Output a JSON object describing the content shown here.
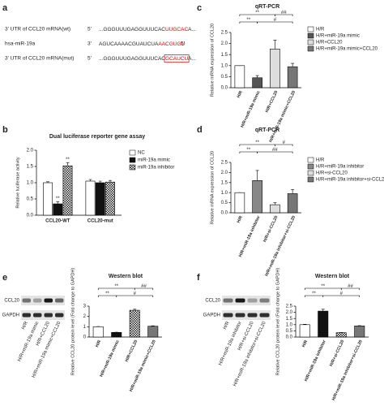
{
  "panel_labels": [
    "a",
    "b",
    "c",
    "d",
    "e",
    "f"
  ],
  "sequences": [
    {
      "label": "3' UTR of CCL20  mRNA(wt)",
      "prefix": "5'",
      "seq": "...GGGUUUGAGGUUUCAC",
      "highlight": "UUGCAC",
      "suffix": "A...",
      "boxed": false
    },
    {
      "label": "hsa-miR-19a",
      "prefix": "3'",
      "seq": "AGUCAAAACGUAUCUA",
      "highlight": "AACGUGU",
      "suffix": "",
      "boxed": false
    },
    {
      "label": "3' UTR of CCL20  mRNA(mut)",
      "prefix": "5'",
      "seq": "...GGGUUUGAGGUUUCAC",
      "highlight": "GCAUCU",
      "suffix": "A...",
      "boxed": true
    }
  ],
  "blots": [
    {
      "rows": [
        "CCL20",
        "GAPDH"
      ],
      "lanes": [
        "H/R",
        "H/R+miR-19a mimic",
        "H/R+CCL20",
        "H/R+miR-19a mimic+CCL20"
      ]
    },
    {
      "rows": [
        "CCL20",
        "GAPDH"
      ],
      "lanes": [
        "H/R",
        "H/R+miR-19a inhibitor",
        "H/R+si-CCL20",
        "H/R+miR-19a inhibitor+si-CCL20"
      ]
    }
  ],
  "chart_data": [
    {
      "type": "bar",
      "title": "Dual luciferase reporter gene assay",
      "y_label": "Relative luciferase activity",
      "categories": [
        "CCL20-WT",
        "CCL20-mut"
      ],
      "series": [
        {
          "name": "NC",
          "color": "#ffffff",
          "values": [
            1.0,
            1.05
          ],
          "errors": [
            0.03,
            0.05
          ]
        },
        {
          "name": "miR-19a mimic",
          "color": "#111111",
          "values": [
            0.35,
            1.0
          ],
          "errors": [
            0.07,
            0.05
          ]
        },
        {
          "name": "miR-19a inhibitor",
          "color": "checkered",
          "values": [
            1.52,
            1.02
          ],
          "errors": [
            0.1,
            0.05
          ]
        }
      ],
      "annotations": [
        "**",
        "**"
      ],
      "ylim": [
        0,
        2.0
      ],
      "yticks": [
        {
          "value": 0,
          "label": "0.0"
        },
        {
          "value": 0.5,
          "label": "0.5"
        },
        {
          "value": 1,
          "label": "1.0"
        },
        {
          "value": 1.5,
          "label": "1.5"
        },
        {
          "value": 2,
          "label": "2.0"
        }
      ],
      "legend": true
    },
    {
      "type": "bar",
      "title": "qRT-PCR",
      "y_label": "Relative mRNA expression of CCL20",
      "categories": [
        "H/R",
        "H/R+miR-19a mimic",
        "H/R+CCL20",
        "H/R+miR-19a mimic+CCL20"
      ],
      "values": [
        1.0,
        0.45,
        1.75,
        0.95
      ],
      "errors": [
        0,
        0.1,
        0.4,
        0.15
      ],
      "colors": [
        "#ffffff",
        "#555555",
        "#dddddd",
        "#777777"
      ],
      "annotations": [
        "**",
        "##",
        "**",
        "#"
      ],
      "ylim": [
        0,
        2.5
      ],
      "yticks": [
        {
          "value": 0,
          "label": "0.0"
        },
        {
          "value": 0.5,
          "label": "0.5"
        },
        {
          "value": 1,
          "label": "1.0"
        },
        {
          "value": 1.5,
          "label": "1.5"
        },
        {
          "value": 2,
          "label": "2.0"
        },
        {
          "value": 2.5,
          "label": "2.5"
        }
      ],
      "legend": true
    },
    {
      "type": "bar",
      "title": "qRT-PCR",
      "y_label": "Relative mRNA expression of CCL20",
      "categories": [
        "H/R",
        "H/R+miR-19a inhibitor",
        "H/R+si-CCL20",
        "H/R+miR-19a inhibitor+si-CCL20"
      ],
      "values": [
        1.0,
        1.6,
        0.4,
        0.95
      ],
      "errors": [
        0,
        0.5,
        0.1,
        0.2
      ],
      "colors": [
        "#ffffff",
        "#888888",
        "#dddddd",
        "#777777"
      ],
      "annotations": [
        "**",
        "#",
        "**",
        "##"
      ],
      "ylim": [
        0,
        2.5
      ],
      "yticks": [
        {
          "value": 0,
          "label": "0.0"
        },
        {
          "value": 0.5,
          "label": "0.5"
        },
        {
          "value": 1,
          "label": "1.0"
        },
        {
          "value": 1.5,
          "label": "1.5"
        },
        {
          "value": 2,
          "label": "2.0"
        },
        {
          "value": 2.5,
          "label": "2.5"
        }
      ],
      "legend": true
    },
    {
      "type": "bar",
      "title": "Western blot",
      "y_label": "Relative CCL20 protein level (Fold change to GAPDH)",
      "categories": [
        "H/R",
        "H/R+miR-19a mimic",
        "H/R+CCL20",
        "H/R+miR-19a mimic+CCL20"
      ],
      "values": [
        1.0,
        0.45,
        2.6,
        1.05
      ],
      "errors": [
        0.02,
        0.02,
        0.1,
        0.04
      ],
      "colors": [
        "#ffffff",
        "#111111",
        "checkered",
        "#777777"
      ],
      "annotations": [
        "**",
        "##",
        "**",
        "#"
      ],
      "ylim": [
        0,
        3
      ],
      "yticks": [
        0,
        1,
        2,
        3
      ],
      "legend": false
    },
    {
      "type": "bar",
      "title": "Western blot",
      "y_label": "Relative CCL20 protein level (Fold change to GAPDH)",
      "categories": [
        "H/R",
        "H/R+miR-19a inhibitor",
        "H/R+si-CCL20",
        "H/R+miR-19a inhibitor+si-CCL20"
      ],
      "values": [
        1.0,
        2.1,
        0.35,
        0.9
      ],
      "errors": [
        0.03,
        0.15,
        0.02,
        0.03
      ],
      "colors": [
        "#ffffff",
        "#111111",
        "checkered",
        "#777777"
      ],
      "annotations": [
        "**",
        "##",
        "**",
        "#"
      ],
      "ylim": [
        0,
        2.5
      ],
      "yticks": [
        {
          "value": 0,
          "label": "0.0"
        },
        {
          "value": 0.5,
          "label": "0.5"
        },
        {
          "value": 1,
          "label": "1.0"
        },
        {
          "value": 1.5,
          "label": "1.5"
        },
        {
          "value": 2,
          "label": "2.0"
        },
        {
          "value": 2.5,
          "label": "2.5"
        }
      ],
      "legend": false
    }
  ]
}
